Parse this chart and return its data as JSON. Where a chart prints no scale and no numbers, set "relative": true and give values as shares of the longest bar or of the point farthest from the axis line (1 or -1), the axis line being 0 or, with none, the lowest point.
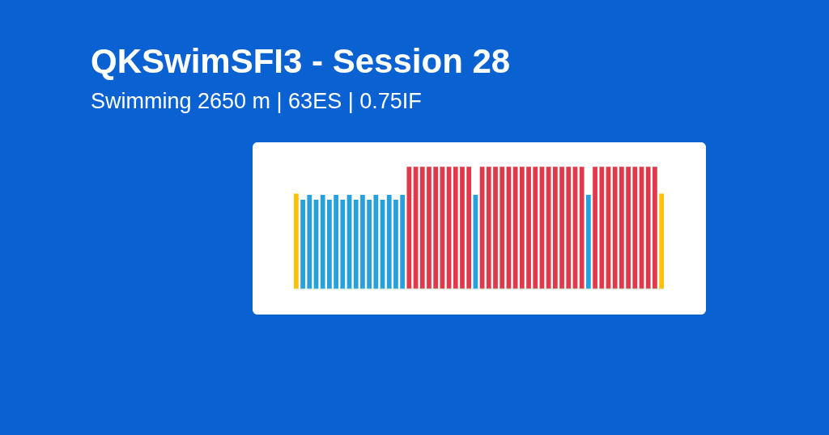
{
  "chart_data": {
    "type": "bar",
    "title": "QKSwimSFI3 - Session 28",
    "subtitle": "Swimming 2650 m | 63ES | 0.75IF",
    "relative": true,
    "categories": [
      null,
      null,
      null,
      null,
      null,
      null,
      null,
      null,
      null,
      null,
      null,
      null,
      null,
      null,
      null,
      null,
      null,
      null,
      null,
      null,
      null,
      null,
      null,
      null,
      null,
      null,
      null,
      null,
      null,
      null,
      null,
      null,
      null,
      null,
      null,
      null,
      null,
      null,
      null,
      null,
      null,
      null,
      null,
      null,
      null,
      null,
      null,
      null,
      null,
      null,
      null,
      null,
      null,
      null,
      null,
      null
    ],
    "values": [
      0.78,
      0.73,
      0.77,
      0.73,
      0.77,
      0.73,
      0.77,
      0.73,
      0.77,
      0.73,
      0.77,
      0.73,
      0.77,
      0.73,
      0.77,
      0.73,
      0.77,
      1,
      1,
      1,
      1,
      1,
      1,
      1,
      1,
      1,
      1,
      0.77,
      1,
      1,
      1,
      1,
      1,
      1,
      1,
      1,
      1,
      1,
      1,
      1,
      1,
      1,
      1,
      1,
      0.77,
      1,
      1,
      1,
      1,
      1,
      1,
      1,
      1,
      1,
      1,
      0.78
    ],
    "colors": [
      "#ffc107",
      "#28a0dc",
      "#28a0dc",
      "#28a0dc",
      "#28a0dc",
      "#28a0dc",
      "#28a0dc",
      "#28a0dc",
      "#28a0dc",
      "#28a0dc",
      "#28a0dc",
      "#28a0dc",
      "#28a0dc",
      "#28a0dc",
      "#28a0dc",
      "#28a0dc",
      "#28a0dc",
      "#e03a4a",
      "#e03a4a",
      "#e03a4a",
      "#e03a4a",
      "#e03a4a",
      "#e03a4a",
      "#e03a4a",
      "#e03a4a",
      "#e03a4a",
      "#e03a4a",
      "#28a0dc",
      "#e03a4a",
      "#e03a4a",
      "#e03a4a",
      "#e03a4a",
      "#e03a4a",
      "#e03a4a",
      "#e03a4a",
      "#e03a4a",
      "#e03a4a",
      "#e03a4a",
      "#e03a4a",
      "#e03a4a",
      "#e03a4a",
      "#e03a4a",
      "#e03a4a",
      "#e03a4a",
      "#28a0dc",
      "#e03a4a",
      "#e03a4a",
      "#e03a4a",
      "#e03a4a",
      "#e03a4a",
      "#e03a4a",
      "#e03a4a",
      "#e03a4a",
      "#e03a4a",
      "#e03a4a",
      "#ffc107"
    ]
  }
}
